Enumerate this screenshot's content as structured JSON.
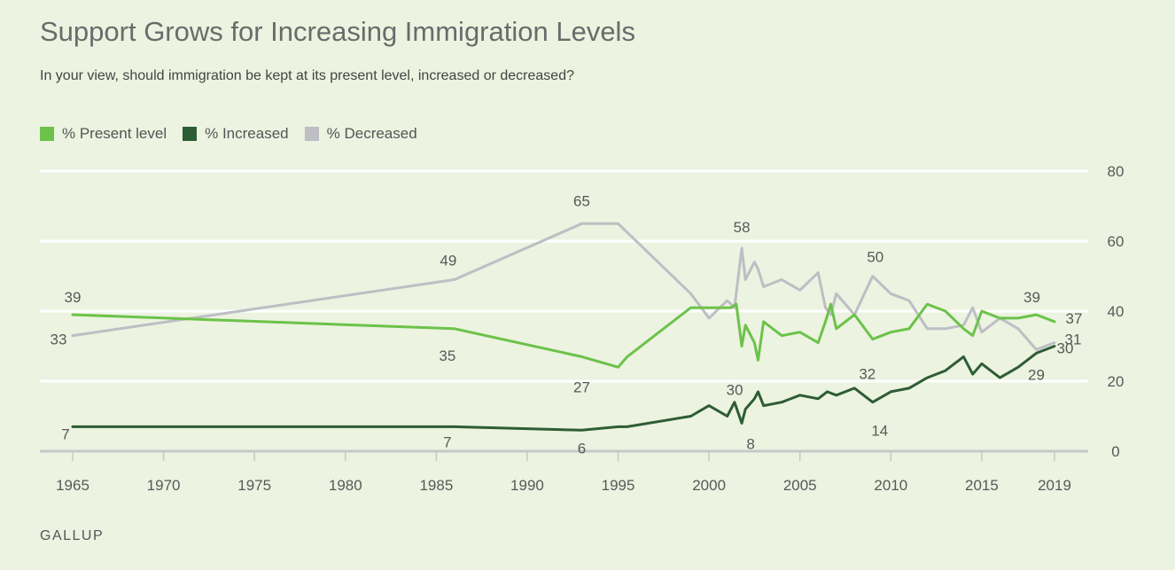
{
  "title": "Support Grows for Increasing Immigration Levels",
  "subtitle": "In your view, should immigration be kept at its present level, increased or decreased?",
  "source": "GALLUP",
  "colors": {
    "present": "#6cc24a",
    "increased": "#2d5d35",
    "decreased": "#bebec4",
    "grid": "#ffffff",
    "tick": "#c8c8c8",
    "text": "#595959"
  },
  "chart_data": {
    "type": "line",
    "title": "Support Grows for Increasing Immigration Levels",
    "subtitle": "In your view, should immigration be kept at its present level, increased or decreased?",
    "xlim": [
      1965,
      2019
    ],
    "ylim": [
      0,
      80
    ],
    "x_ticks": [
      1965,
      1970,
      1975,
      1980,
      1985,
      1990,
      1995,
      2000,
      2005,
      2010,
      2015,
      2019
    ],
    "y_ticks": [
      0,
      20,
      40,
      60,
      80
    ],
    "grid": true,
    "legend_position": "top-left",
    "series": [
      {
        "name": "% Present level",
        "color_key": "present",
        "x": [
          1965,
          1986,
          1993,
          1995,
          1995.5,
          1999,
          2000,
          2001.2,
          2001.5,
          2001.8,
          2002,
          2002.5,
          2002.7,
          2003,
          2004,
          2005,
          2006,
          2006.4,
          2006.7,
          2007,
          2008,
          2009,
          2010,
          2011,
          2012,
          2013,
          2014,
          2014.5,
          2015,
          2016,
          2017,
          2018,
          2019
        ],
        "values": [
          39,
          35,
          27,
          24,
          27,
          41,
          41,
          41,
          42,
          30,
          36,
          31,
          26,
          37,
          33,
          34,
          31,
          37,
          42,
          35,
          39,
          32,
          34,
          35,
          42,
          40,
          35,
          33,
          40,
          38,
          38,
          39,
          37
        ]
      },
      {
        "name": "% Increased",
        "color_key": "increased",
        "x": [
          1965,
          1986,
          1993,
          1995,
          1995.5,
          1999,
          2000,
          2001,
          2001.4,
          2001.8,
          2002,
          2002.5,
          2002.7,
          2003,
          2004,
          2005,
          2006,
          2006.5,
          2007,
          2008,
          2009,
          2010,
          2011,
          2012,
          2013,
          2014,
          2014.5,
          2015,
          2016,
          2017,
          2018,
          2019
        ],
        "values": [
          7,
          7,
          6,
          7,
          7,
          10,
          13,
          10,
          14,
          8,
          12,
          15,
          17,
          13,
          14,
          16,
          15,
          17,
          16,
          18,
          14,
          17,
          18,
          21,
          23,
          27,
          22,
          25,
          21,
          24,
          28,
          30
        ]
      },
      {
        "name": "% Decreased",
        "color_key": "decreased",
        "x": [
          1965,
          1986,
          1993,
          1995,
          1999,
          2000,
          2001,
          2001.4,
          2001.8,
          2002,
          2002.5,
          2002.7,
          2003,
          2004,
          2005,
          2006,
          2006.4,
          2006.7,
          2007,
          2008,
          2009,
          2010,
          2011,
          2012,
          2013,
          2014,
          2014.5,
          2015,
          2016,
          2017,
          2018,
          2019
        ],
        "values": [
          33,
          49,
          65,
          65,
          45,
          38,
          43,
          41,
          58,
          49,
          54,
          52,
          47,
          49,
          46,
          51,
          41,
          39,
          45,
          39,
          50,
          45,
          43,
          35,
          35,
          36,
          41,
          34,
          38,
          35,
          29,
          31
        ]
      }
    ],
    "data_labels": [
      {
        "series": "% Present level",
        "x": 1965,
        "value": "39"
      },
      {
        "series": "% Present level",
        "x": 1986,
        "value": "35"
      },
      {
        "series": "% Present level",
        "x": 1993,
        "value": "27"
      },
      {
        "series": "% Present level",
        "x": 2001.8,
        "value": "30"
      },
      {
        "series": "% Present level",
        "x": 2018,
        "value": "39"
      },
      {
        "series": "% Present level",
        "x": 2019,
        "value": "37"
      },
      {
        "series": "% Increased",
        "x": 1965,
        "value": "7"
      },
      {
        "series": "% Increased",
        "x": 1986,
        "value": "7"
      },
      {
        "series": "% Increased",
        "x": 1993,
        "value": "6"
      },
      {
        "series": "% Increased",
        "x": 2001.8,
        "value": "8"
      },
      {
        "series": "% Increased",
        "x": 2009,
        "value": "14"
      },
      {
        "series": "% Increased",
        "x": 2019,
        "value": "30"
      },
      {
        "series": "% Decreased",
        "x": 1965,
        "value": "33"
      },
      {
        "series": "% Decreased",
        "x": 1986,
        "value": "49"
      },
      {
        "series": "% Decreased",
        "x": 1993,
        "value": "65"
      },
      {
        "series": "% Decreased",
        "x": 2001.8,
        "value": "58"
      },
      {
        "series": "% Decreased",
        "x": 2009,
        "value": "50"
      },
      {
        "series": "% Decreased",
        "x": 2018,
        "value": "29"
      },
      {
        "series": "% Decreased",
        "x": 2019,
        "value": "31"
      },
      {
        "series": "% Present level",
        "x": 2009,
        "value": "32"
      }
    ]
  }
}
